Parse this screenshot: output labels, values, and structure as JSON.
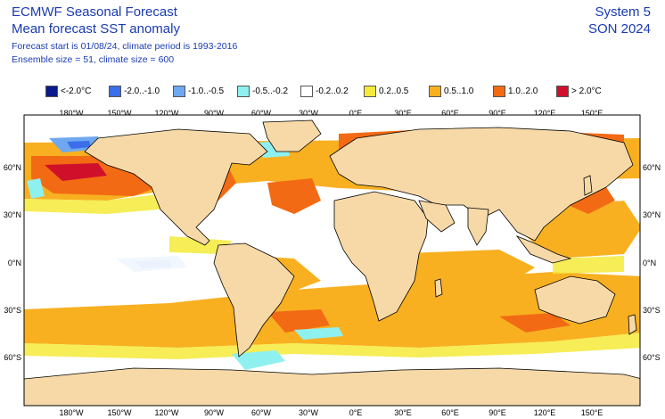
{
  "header": {
    "title_line1": "ECMWF Seasonal Forecast",
    "title_line2": "Mean forecast SST anomaly",
    "subtitle_line1": "Forecast start is 01/08/24, climate period is 1993-2016",
    "subtitle_line2": "Ensemble size = 51, climate size = 600",
    "system": "System 5",
    "season": "SON 2024"
  },
  "legend": [
    {
      "label": "<-2.0°C",
      "color": "#0a1a8c"
    },
    {
      "label": "-2.0..-1.0",
      "color": "#3b6ee8"
    },
    {
      "label": "-1.0..-0.5",
      "color": "#6fa8f0"
    },
    {
      "label": "-0.5..-0.2",
      "color": "#8ff0f0"
    },
    {
      "label": "-0.2..0.2",
      "color": "#ffffff"
    },
    {
      "label": "0.2..0.5",
      "color": "#f5ea3a"
    },
    {
      "label": "0.5..1.0",
      "color": "#f8b020"
    },
    {
      "label": "1.0..2.0",
      "color": "#f26a14"
    },
    {
      "label": "> 2.0°C",
      "color": "#d0102a"
    }
  ],
  "axes": {
    "lon_labels": [
      "180°W",
      "150°W",
      "120°W",
      "90°W",
      "60°W",
      "30°W",
      "0°E",
      "30°E",
      "60°E",
      "90°E",
      "120°E",
      "150°E"
    ],
    "lat_labels": [
      "60°N",
      "30°N",
      "0°N",
      "30°S",
      "60°S"
    ]
  },
  "colors": {
    "land": "#f7d9a8",
    "ocean_neutral": "#ffffff",
    "text": "#1a3bb0"
  }
}
